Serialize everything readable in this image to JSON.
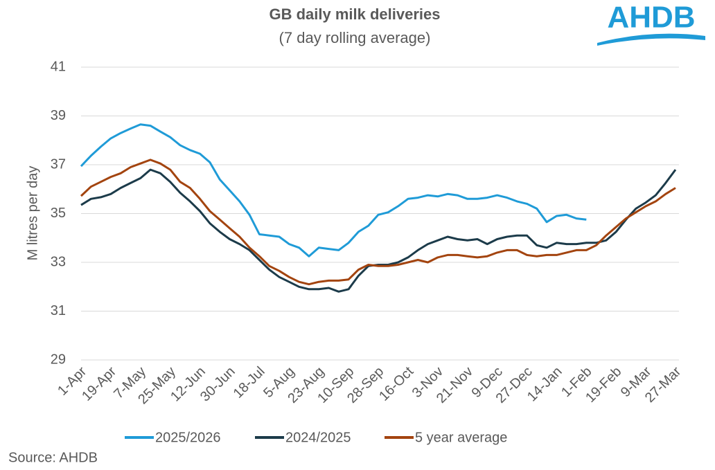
{
  "logo": "AHDB",
  "source": "Source: AHDB",
  "chart_data": {
    "type": "line",
    "title": "GB daily milk deliveries",
    "subtitle": "(7 day rolling average)",
    "y_label": "M litres per day",
    "ylim": [
      29,
      41
    ],
    "yticks": [
      29,
      31,
      33,
      35,
      37,
      39,
      41
    ],
    "grid": true,
    "legend": "bottom",
    "categories": [
      "1-Apr",
      null,
      null,
      "19-Apr",
      null,
      null,
      "7-May",
      null,
      null,
      "25-May",
      null,
      null,
      "12-Jun",
      null,
      null,
      "30-Jun",
      null,
      null,
      "18-Jul",
      null,
      null,
      "5-Aug",
      null,
      null,
      "23-Aug",
      null,
      null,
      "10-Sep",
      null,
      null,
      "28-Sep",
      null,
      null,
      "16-Oct",
      null,
      null,
      "3-Nov",
      null,
      null,
      "21-Nov",
      null,
      null,
      "9-Dec",
      null,
      null,
      "27-Dec",
      null,
      null,
      "14-Jan",
      null,
      null,
      "1-Feb",
      null,
      null,
      "19-Feb",
      null,
      null,
      "9-Mar",
      null,
      null,
      "27-Mar"
    ],
    "series": [
      {
        "name": "2025/2026",
        "color": "#1f9bd7",
        "values": [
          36.94,
          37.37,
          37.74,
          38.08,
          38.3,
          38.48,
          38.65,
          38.6,
          38.36,
          38.13,
          37.8,
          37.6,
          37.45,
          37.1,
          36.4,
          35.95,
          35.5,
          34.95,
          34.15,
          34.1,
          34.05,
          33.75,
          33.6,
          33.25,
          33.6,
          33.55,
          33.5,
          33.8,
          34.25,
          34.5,
          34.95,
          35.05,
          35.3,
          35.6,
          35.65,
          35.75,
          35.7,
          35.8,
          35.75,
          35.6,
          35.6,
          35.65,
          35.75,
          35.65,
          35.5,
          35.4,
          35.2,
          34.65,
          34.9,
          34.95,
          34.8,
          34.75,
          null,
          null,
          null,
          null,
          null,
          null,
          null,
          null,
          null
        ]
      },
      {
        "name": "2024/2025",
        "color": "#1c3b4a",
        "values": [
          35.35,
          35.6,
          35.67,
          35.8,
          36.05,
          36.25,
          36.45,
          36.8,
          36.65,
          36.3,
          35.85,
          35.5,
          35.1,
          34.6,
          34.25,
          33.95,
          33.75,
          33.5,
          33.1,
          32.7,
          32.4,
          32.2,
          32.0,
          31.9,
          31.9,
          31.95,
          31.8,
          31.9,
          32.45,
          32.85,
          32.9,
          32.9,
          33.0,
          33.2,
          33.5,
          33.75,
          33.9,
          34.05,
          33.95,
          33.9,
          33.95,
          33.75,
          33.95,
          34.05,
          34.1,
          34.1,
          33.7,
          33.6,
          33.8,
          33.75,
          33.75,
          33.8,
          33.8,
          33.9,
          34.25,
          34.75,
          35.2,
          35.45,
          35.75,
          36.25,
          36.8
        ]
      },
      {
        "name": "5 year average",
        "color": "#a3440f",
        "values": [
          35.72,
          36.1,
          36.3,
          36.5,
          36.65,
          36.9,
          37.05,
          37.2,
          37.05,
          36.8,
          36.3,
          36.05,
          35.6,
          35.1,
          34.75,
          34.4,
          34.05,
          33.6,
          33.25,
          32.85,
          32.65,
          32.4,
          32.2,
          32.1,
          32.2,
          32.25,
          32.25,
          32.3,
          32.7,
          32.9,
          32.85,
          32.85,
          32.9,
          33.0,
          33.1,
          33.0,
          33.2,
          33.3,
          33.3,
          33.25,
          33.2,
          33.25,
          33.4,
          33.5,
          33.5,
          33.3,
          33.25,
          33.3,
          33.3,
          33.4,
          33.5,
          33.5,
          33.7,
          34.1,
          34.45,
          34.8,
          35.05,
          35.3,
          35.5,
          35.8,
          36.05
        ]
      }
    ]
  }
}
